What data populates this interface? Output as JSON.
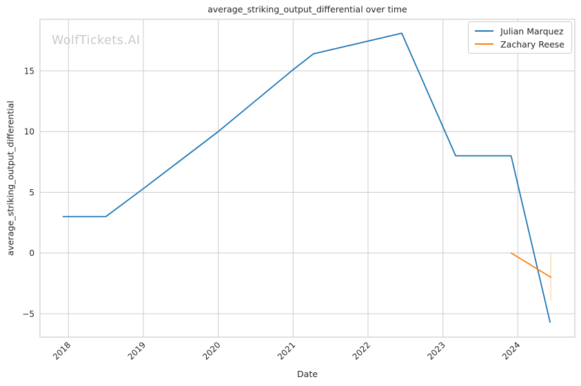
{
  "figure": {
    "watermark": "WolfTickets.AI"
  },
  "chart_data": {
    "type": "line",
    "title": "average_striking_output_differential over time",
    "xlabel": "Date",
    "ylabel": "average_striking_output_differential",
    "xlim": [
      2017.62,
      2024.76
    ],
    "ylim": [
      -6.93,
      19.25
    ],
    "xticks": [
      2018,
      2019,
      2020,
      2021,
      2022,
      2023,
      2024
    ],
    "yticks": [
      -5,
      0,
      5,
      10,
      15
    ],
    "grid": true,
    "legend_position": "upper-right",
    "series": [
      {
        "name": "Julian Marquez",
        "color": "#1f77b4",
        "x": [
          2017.93,
          2018.5,
          2019.0,
          2020.0,
          2021.0,
          2021.27,
          2022.45,
          2023.17,
          2023.91,
          2024.43
        ],
        "y": [
          3,
          3,
          5.3,
          10,
          15.1,
          16.4,
          18.1,
          8,
          8,
          -5.7
        ]
      },
      {
        "name": "Zachary Reese",
        "color": "#ff7f0e",
        "x": [
          2023.91,
          2024.44
        ],
        "y": [
          0,
          -2
        ],
        "error_bar": {
          "x": 2024.44,
          "y0": 0,
          "y1": -3.9
        }
      }
    ],
    "style": {
      "grid_color": "#cccccc",
      "spine_color": "#cccccc",
      "text_color": "#262626",
      "watermark_color": "#c9c9c9",
      "line_width": 1.8
    }
  }
}
